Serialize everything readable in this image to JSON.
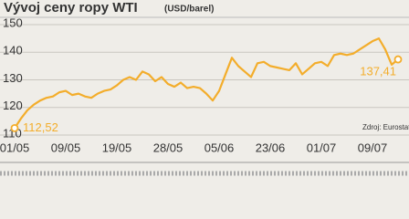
{
  "chart_data": {
    "type": "line",
    "title": "Vývoj ceny ropy WTI",
    "subtitle": "(USD/barel)",
    "source": "Zdroj: Eurostat",
    "categories": [
      "01/05",
      null,
      null,
      null,
      null,
      null,
      null,
      null,
      "09/05",
      null,
      null,
      null,
      null,
      null,
      null,
      null,
      "19/05",
      null,
      null,
      null,
      null,
      null,
      null,
      null,
      "28/05",
      null,
      null,
      null,
      null,
      null,
      null,
      null,
      "05/06",
      null,
      null,
      null,
      null,
      null,
      null,
      null,
      "23/06",
      null,
      null,
      null,
      null,
      null,
      null,
      null,
      "01/07",
      null,
      null,
      null,
      null,
      null,
      null,
      null,
      "09/07",
      null,
      null,
      null,
      null
    ],
    "series": [
      {
        "name": "WTI",
        "color": "#f3ad2b",
        "values": [
          112.52,
          116,
          119,
          121,
          122.5,
          123.5,
          124,
          125.5,
          126,
          124.5,
          125,
          124,
          123.5,
          125,
          126,
          126.5,
          128,
          130,
          131,
          130,
          133,
          132,
          129.5,
          131,
          128.5,
          127.5,
          129,
          127,
          127.5,
          127,
          125,
          122.5,
          126,
          132,
          138,
          135,
          133,
          131,
          136,
          136.5,
          135,
          134.5,
          134,
          133.5,
          136,
          132,
          134,
          136,
          136.5,
          135,
          139,
          139.5,
          139,
          139.5,
          141,
          142.5,
          144,
          145,
          141,
          135.5,
          137.41
        ],
        "value_labels": [
          "112,52",
          null,
          null,
          null,
          null,
          null,
          null,
          null,
          null,
          null,
          null,
          null,
          null,
          null,
          null,
          null,
          null,
          null,
          null,
          null,
          null,
          null,
          null,
          null,
          null,
          null,
          null,
          null,
          null,
          null,
          null,
          null,
          null,
          null,
          null,
          null,
          null,
          null,
          null,
          null,
          null,
          null,
          null,
          null,
          null,
          null,
          null,
          null,
          null,
          null,
          null,
          null,
          null,
          null,
          null,
          null,
          null,
          null,
          null,
          null,
          "137,41"
        ]
      }
    ],
    "ylim": [
      110,
      150
    ],
    "yticks": [
      110,
      120,
      130,
      140,
      150
    ],
    "grid": true
  }
}
